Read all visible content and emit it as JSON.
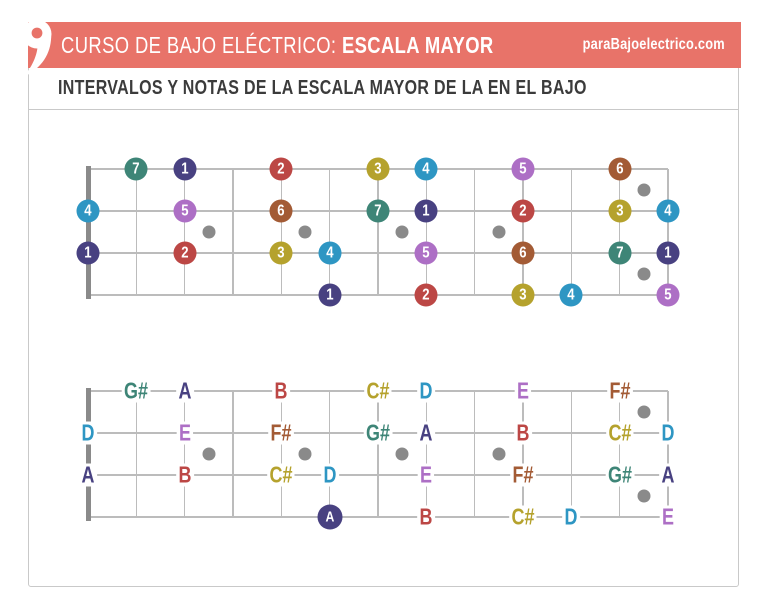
{
  "colors": {
    "banner": "#e87369",
    "banner_text": "#ffffff",
    "frame_border": "#c9c9c9",
    "subtitle_text": "#3b3b3b",
    "grid_line": "#bcbcbc",
    "nut": "#8a8a8a",
    "inlay_dot": "#8a8a8a",
    "degree_colors": {
      "1": "#484181",
      "2": "#bc4745",
      "3": "#b5a22d",
      "4": "#2e96c3",
      "5": "#ad6fc5",
      "6": "#a35b35",
      "7": "#3e8577"
    }
  },
  "header": {
    "course_label": "CURSO DE BAJO ELÉCTRICO: ",
    "course_topic": "ESCALA MAYOR",
    "website": "paraBajoelectrico.com",
    "logo_icon": "comma-icon"
  },
  "subtitle": "INTERVALOS Y NOTAS DE LA ESCALA MAYOR DE LA EN EL BAJO",
  "fretboard": {
    "strings": 4,
    "frets": 12,
    "single_inlay_frets": [
      3,
      5,
      7,
      9
    ],
    "double_inlay_fret": 12
  },
  "interval_board": {
    "markers": [
      {
        "string": 1,
        "fret": 1,
        "degree": "7"
      },
      {
        "string": 1,
        "fret": 2,
        "degree": "1"
      },
      {
        "string": 1,
        "fret": 4,
        "degree": "2"
      },
      {
        "string": 1,
        "fret": 6,
        "degree": "3"
      },
      {
        "string": 1,
        "fret": 7,
        "degree": "4"
      },
      {
        "string": 1,
        "fret": 9,
        "degree": "5"
      },
      {
        "string": 1,
        "fret": 11,
        "degree": "6"
      },
      {
        "string": 2,
        "fret": 0,
        "degree": "4"
      },
      {
        "string": 2,
        "fret": 2,
        "degree": "5"
      },
      {
        "string": 2,
        "fret": 4,
        "degree": "6"
      },
      {
        "string": 2,
        "fret": 6,
        "degree": "7"
      },
      {
        "string": 2,
        "fret": 7,
        "degree": "1"
      },
      {
        "string": 2,
        "fret": 9,
        "degree": "2"
      },
      {
        "string": 2,
        "fret": 11,
        "degree": "3"
      },
      {
        "string": 2,
        "fret": 12,
        "degree": "4"
      },
      {
        "string": 3,
        "fret": 0,
        "degree": "1"
      },
      {
        "string": 3,
        "fret": 2,
        "degree": "2"
      },
      {
        "string": 3,
        "fret": 4,
        "degree": "3"
      },
      {
        "string": 3,
        "fret": 5,
        "degree": "4"
      },
      {
        "string": 3,
        "fret": 7,
        "degree": "5"
      },
      {
        "string": 3,
        "fret": 9,
        "degree": "6"
      },
      {
        "string": 3,
        "fret": 11,
        "degree": "7"
      },
      {
        "string": 3,
        "fret": 12,
        "degree": "1"
      },
      {
        "string": 4,
        "fret": 5,
        "degree": "1"
      },
      {
        "string": 4,
        "fret": 7,
        "degree": "2"
      },
      {
        "string": 4,
        "fret": 9,
        "degree": "3"
      },
      {
        "string": 4,
        "fret": 10,
        "degree": "4"
      },
      {
        "string": 4,
        "fret": 12,
        "degree": "5"
      }
    ]
  },
  "note_board": {
    "markers": [
      {
        "string": 1,
        "fret": 1,
        "note": "G#",
        "degree": "7"
      },
      {
        "string": 1,
        "fret": 2,
        "note": "A",
        "degree": "1"
      },
      {
        "string": 1,
        "fret": 4,
        "note": "B",
        "degree": "2"
      },
      {
        "string": 1,
        "fret": 6,
        "note": "C#",
        "degree": "3"
      },
      {
        "string": 1,
        "fret": 7,
        "note": "D",
        "degree": "4"
      },
      {
        "string": 1,
        "fret": 9,
        "note": "E",
        "degree": "5"
      },
      {
        "string": 1,
        "fret": 11,
        "note": "F#",
        "degree": "6"
      },
      {
        "string": 2,
        "fret": 0,
        "note": "D",
        "degree": "4"
      },
      {
        "string": 2,
        "fret": 2,
        "note": "E",
        "degree": "5"
      },
      {
        "string": 2,
        "fret": 4,
        "note": "F#",
        "degree": "6"
      },
      {
        "string": 2,
        "fret": 6,
        "note": "G#",
        "degree": "7"
      },
      {
        "string": 2,
        "fret": 7,
        "note": "A",
        "degree": "1"
      },
      {
        "string": 2,
        "fret": 9,
        "note": "B",
        "degree": "2"
      },
      {
        "string": 2,
        "fret": 11,
        "note": "C#",
        "degree": "3"
      },
      {
        "string": 2,
        "fret": 12,
        "note": "D",
        "degree": "4"
      },
      {
        "string": 3,
        "fret": 0,
        "note": "A",
        "degree": "1"
      },
      {
        "string": 3,
        "fret": 2,
        "note": "B",
        "degree": "2"
      },
      {
        "string": 3,
        "fret": 4,
        "note": "C#",
        "degree": "3"
      },
      {
        "string": 3,
        "fret": 5,
        "note": "D",
        "degree": "4"
      },
      {
        "string": 3,
        "fret": 7,
        "note": "E",
        "degree": "5"
      },
      {
        "string": 3,
        "fret": 9,
        "note": "F#",
        "degree": "6"
      },
      {
        "string": 3,
        "fret": 11,
        "note": "G#",
        "degree": "7"
      },
      {
        "string": 3,
        "fret": 12,
        "note": "A",
        "degree": "1"
      },
      {
        "string": 4,
        "fret": 5,
        "note": "A",
        "degree": "1",
        "circled": true
      },
      {
        "string": 4,
        "fret": 7,
        "note": "B",
        "degree": "2"
      },
      {
        "string": 4,
        "fret": 9,
        "note": "C#",
        "degree": "3"
      },
      {
        "string": 4,
        "fret": 10,
        "note": "D",
        "degree": "4"
      },
      {
        "string": 4,
        "fret": 12,
        "note": "E",
        "degree": "5"
      }
    ]
  }
}
